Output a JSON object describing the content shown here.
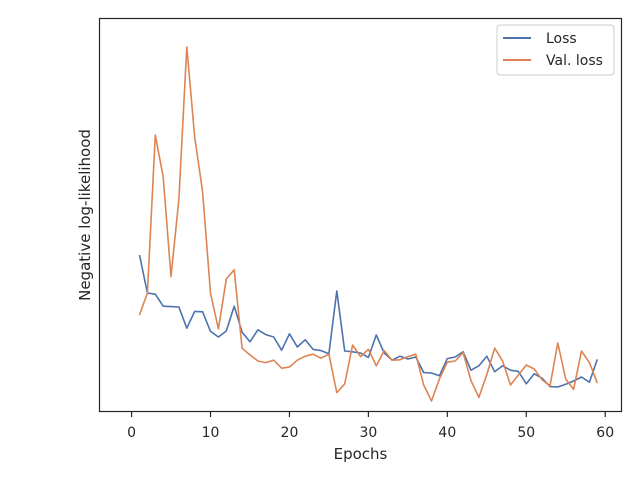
{
  "chart_data": {
    "type": "line",
    "title": "",
    "xlabel": "Epochs",
    "ylabel": "Negative log-likelihood",
    "xlim": [
      -4,
      62
    ],
    "ylim": [
      0.2,
      10.0
    ],
    "x_ticks": [
      0,
      10,
      20,
      30,
      40,
      50,
      60
    ],
    "y_tick_labels_shown": false,
    "grid": false,
    "legend_position": "top-right",
    "series": [
      {
        "name": "Loss",
        "color": "#4c72b0",
        "x": [
          1,
          2,
          3,
          4,
          5,
          6,
          7,
          8,
          9,
          10,
          11,
          12,
          13,
          14,
          15,
          16,
          17,
          18,
          19,
          20,
          21,
          22,
          23,
          24,
          25,
          26,
          27,
          28,
          29,
          30,
          31,
          32,
          33,
          34,
          35,
          36,
          37,
          38,
          39,
          40,
          41,
          42,
          43,
          44,
          45,
          46,
          47,
          48,
          49,
          50,
          51,
          52,
          53,
          54,
          55,
          56,
          57,
          58,
          59
        ],
        "values": [
          4.1,
          3.15,
          3.12,
          2.82,
          2.81,
          2.8,
          2.27,
          2.69,
          2.68,
          2.19,
          2.05,
          2.2,
          2.82,
          2.17,
          1.93,
          2.23,
          2.11,
          2.05,
          1.72,
          2.13,
          1.8,
          1.98,
          1.74,
          1.71,
          1.63,
          3.2,
          1.7,
          1.68,
          1.65,
          1.54,
          2.1,
          1.65,
          1.47,
          1.57,
          1.5,
          1.55,
          1.16,
          1.15,
          1.08,
          1.51,
          1.55,
          1.68,
          1.22,
          1.33,
          1.57,
          1.18,
          1.33,
          1.22,
          1.19,
          0.88,
          1.13,
          1.02,
          0.81,
          0.8,
          0.87,
          0.95,
          1.05,
          0.92,
          1.49
        ]
      },
      {
        "name": "Val. loss",
        "color": "#dd8452",
        "x": [
          1,
          2,
          3,
          4,
          5,
          6,
          7,
          8,
          9,
          10,
          11,
          12,
          13,
          14,
          15,
          16,
          17,
          18,
          19,
          20,
          21,
          22,
          23,
          24,
          25,
          26,
          27,
          28,
          29,
          30,
          31,
          32,
          33,
          34,
          35,
          36,
          37,
          38,
          39,
          40,
          41,
          42,
          43,
          44,
          45,
          46,
          47,
          48,
          49,
          50,
          51,
          52,
          53,
          54,
          55,
          56,
          57,
          58,
          59
        ],
        "values": [
          2.6,
          3.15,
          7.1,
          6.05,
          3.56,
          5.5,
          9.3,
          7.05,
          5.68,
          3.15,
          2.25,
          3.5,
          3.73,
          1.77,
          1.6,
          1.45,
          1.41,
          1.47,
          1.27,
          1.3,
          1.47,
          1.57,
          1.62,
          1.52,
          1.62,
          0.66,
          0.88,
          1.85,
          1.56,
          1.74,
          1.33,
          1.71,
          1.47,
          1.48,
          1.56,
          1.62,
          0.85,
          0.45,
          1.0,
          1.42,
          1.45,
          1.66,
          0.96,
          0.54,
          1.11,
          1.77,
          1.45,
          0.85,
          1.1,
          1.35,
          1.25,
          0.98,
          0.83,
          1.9,
          1.0,
          0.74,
          1.7,
          1.41,
          0.9
        ]
      }
    ]
  }
}
